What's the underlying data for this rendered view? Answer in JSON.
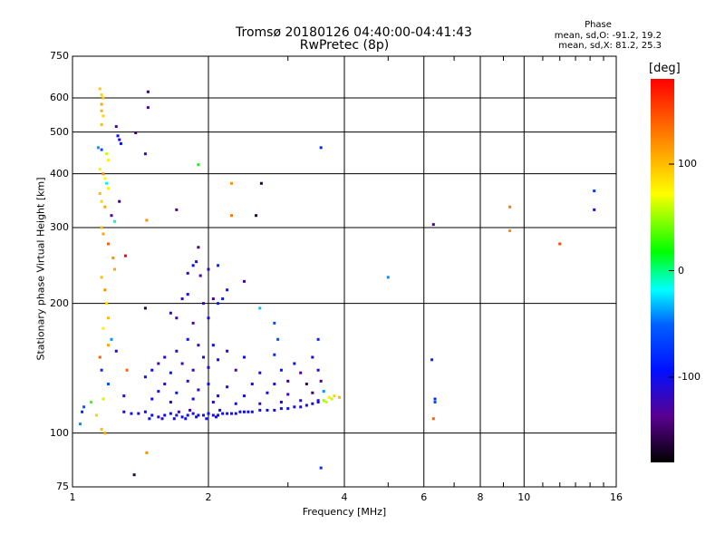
{
  "chart_data": {
    "type": "scatter",
    "title": "Tromsø 20180126 04:40:00-04:41:43",
    "subtitle": "RwPretec (8p)",
    "xlabel": "Frequency [MHz]",
    "ylabel": "Stationary phase Virtual Height [km]",
    "xscale": "log",
    "yscale": "log",
    "xlim": [
      1,
      16
    ],
    "ylim": [
      75,
      750
    ],
    "xticks": [
      1,
      2,
      4,
      6,
      8,
      10,
      16
    ],
    "yticks": [
      75,
      100,
      200,
      300,
      400,
      500,
      600,
      750
    ],
    "grid": true,
    "phase_box": {
      "title": "Phase",
      "line1": "mean, sd,O: -91.2, 19.2",
      "line2": "mean, sd,X:  81.2, 25.3"
    },
    "colorbar": {
      "label": "[deg]",
      "range": [
        -180,
        180
      ],
      "ticks": [
        100,
        0,
        -100
      ],
      "colormap": "rainbow"
    },
    "points": [
      [
        1.15,
        630,
        95
      ],
      [
        1.16,
        610,
        90
      ],
      [
        1.16,
        580,
        110
      ],
      [
        1.16,
        560,
        105
      ],
      [
        1.17,
        600,
        95
      ],
      [
        1.17,
        545,
        90
      ],
      [
        1.16,
        520,
        100
      ],
      [
        1.25,
        515,
        -130
      ],
      [
        1.26,
        490,
        -100
      ],
      [
        1.27,
        480,
        -110
      ],
      [
        1.28,
        470,
        -95
      ],
      [
        1.14,
        460,
        -40
      ],
      [
        1.16,
        455,
        -60
      ],
      [
        1.19,
        445,
        60
      ],
      [
        1.2,
        430,
        80
      ],
      [
        1.15,
        410,
        80
      ],
      [
        1.17,
        400,
        120
      ],
      [
        1.18,
        390,
        70
      ],
      [
        1.19,
        380,
        -20
      ],
      [
        1.2,
        370,
        80
      ],
      [
        1.15,
        360,
        100
      ],
      [
        1.16,
        345,
        90
      ],
      [
        1.18,
        335,
        110
      ],
      [
        1.22,
        320,
        -130
      ],
      [
        1.27,
        345,
        -150
      ],
      [
        1.24,
        310,
        -10
      ],
      [
        1.16,
        300,
        100
      ],
      [
        1.17,
        290,
        110
      ],
      [
        1.2,
        275,
        140
      ],
      [
        1.23,
        255,
        120
      ],
      [
        1.24,
        240,
        110
      ],
      [
        1.31,
        258,
        180
      ],
      [
        1.16,
        230,
        100
      ],
      [
        1.18,
        215,
        120
      ],
      [
        1.19,
        200,
        90
      ],
      [
        1.2,
        185,
        100
      ],
      [
        1.17,
        175,
        80
      ],
      [
        1.22,
        165,
        -40
      ],
      [
        1.2,
        160,
        110
      ],
      [
        1.25,
        155,
        -100
      ],
      [
        1.15,
        150,
        140
      ],
      [
        1.16,
        140,
        -80
      ],
      [
        1.2,
        130,
        -60
      ],
      [
        1.17,
        120,
        60
      ],
      [
        1.13,
        110,
        90
      ],
      [
        1.16,
        102,
        100
      ],
      [
        1.18,
        100,
        110
      ],
      [
        1.06,
        115,
        -60
      ],
      [
        1.05,
        112,
        -80
      ],
      [
        1.04,
        105,
        -40
      ],
      [
        1.1,
        118,
        30
      ],
      [
        1.3,
        122,
        -100
      ],
      [
        1.32,
        140,
        140
      ],
      [
        1.47,
        620,
        -150
      ],
      [
        1.47,
        570,
        -130
      ],
      [
        1.38,
        498,
        -150
      ],
      [
        1.45,
        445,
        -120
      ],
      [
        1.9,
        420,
        20
      ],
      [
        1.46,
        312,
        120
      ],
      [
        1.7,
        330,
        -140
      ],
      [
        2.25,
        380,
        120
      ],
      [
        2.25,
        320,
        130
      ],
      [
        2.62,
        380,
        -160
      ],
      [
        2.55,
        320,
        -160
      ],
      [
        3.55,
        460,
        -80
      ],
      [
        1.45,
        195,
        -160
      ],
      [
        1.37,
        80,
        -160
      ],
      [
        1.46,
        90,
        120
      ],
      [
        1.9,
        270,
        -140
      ],
      [
        1.88,
        250,
        -110
      ],
      [
        1.85,
        245,
        -100
      ],
      [
        1.8,
        235,
        -120
      ],
      [
        1.92,
        232,
        -130
      ],
      [
        2.0,
        240,
        -120
      ],
      [
        2.1,
        245,
        -80
      ],
      [
        2.4,
        225,
        -120
      ],
      [
        2.2,
        215,
        -90
      ],
      [
        1.8,
        210,
        -100
      ],
      [
        1.75,
        205,
        -110
      ],
      [
        1.95,
        200,
        -120
      ],
      [
        2.05,
        205,
        -140
      ],
      [
        1.65,
        190,
        -110
      ],
      [
        1.7,
        185,
        -120
      ],
      [
        1.85,
        180,
        -130
      ],
      [
        2.0,
        185,
        -100
      ],
      [
        2.1,
        200,
        -90
      ],
      [
        2.15,
        205,
        -90
      ],
      [
        2.6,
        195,
        -30
      ],
      [
        2.8,
        180,
        -60
      ],
      [
        2.85,
        165,
        -60
      ],
      [
        3.5,
        165,
        -80
      ],
      [
        1.8,
        165,
        -90
      ],
      [
        1.9,
        160,
        -120
      ],
      [
        2.05,
        160,
        -100
      ],
      [
        2.2,
        155,
        -110
      ],
      [
        1.7,
        155,
        -100
      ],
      [
        1.6,
        150,
        -110
      ],
      [
        1.55,
        145,
        -120
      ],
      [
        1.75,
        145,
        -120
      ],
      [
        1.95,
        150,
        -110
      ],
      [
        2.1,
        148,
        -100
      ],
      [
        2.4,
        150,
        -100
      ],
      [
        2.8,
        152,
        -80
      ],
      [
        3.1,
        145,
        -100
      ],
      [
        3.4,
        150,
        -100
      ],
      [
        1.5,
        140,
        -100
      ],
      [
        1.65,
        138,
        -90
      ],
      [
        1.85,
        140,
        -110
      ],
      [
        2.0,
        142,
        -110
      ],
      [
        2.3,
        140,
        -130
      ],
      [
        2.6,
        138,
        -100
      ],
      [
        2.9,
        140,
        -90
      ],
      [
        3.2,
        138,
        -140
      ],
      [
        3.5,
        140,
        -110
      ],
      [
        1.45,
        135,
        -100
      ],
      [
        1.6,
        130,
        -110
      ],
      [
        1.8,
        132,
        -120
      ],
      [
        2.0,
        130,
        -100
      ],
      [
        2.2,
        128,
        -110
      ],
      [
        2.5,
        130,
        -100
      ],
      [
        2.8,
        130,
        -100
      ],
      [
        3.0,
        132,
        -150
      ],
      [
        3.3,
        130,
        -150
      ],
      [
        3.55,
        132,
        -140
      ],
      [
        1.55,
        125,
        -100
      ],
      [
        1.7,
        124,
        -90
      ],
      [
        1.9,
        126,
        -110
      ],
      [
        2.1,
        122,
        -100
      ],
      [
        2.4,
        122,
        -100
      ],
      [
        2.7,
        124,
        -100
      ],
      [
        3.0,
        123,
        -120
      ],
      [
        3.4,
        124,
        -150
      ],
      [
        3.6,
        125,
        -40
      ],
      [
        1.5,
        120,
        -100
      ],
      [
        1.65,
        118,
        -110
      ],
      [
        1.85,
        120,
        -100
      ],
      [
        2.05,
        118,
        -110
      ],
      [
        2.3,
        117,
        -100
      ],
      [
        2.6,
        117,
        -110
      ],
      [
        2.9,
        118,
        -100
      ],
      [
        3.2,
        119,
        -120
      ],
      [
        3.5,
        119,
        -100
      ],
      [
        3.7,
        121,
        80
      ],
      [
        3.75,
        120,
        60
      ],
      [
        3.8,
        122,
        90
      ],
      [
        3.9,
        121,
        100
      ],
      [
        3.65,
        118,
        60
      ],
      [
        3.6,
        119,
        50
      ],
      [
        1.3,
        112,
        -100
      ],
      [
        1.35,
        111,
        -100
      ],
      [
        1.4,
        111,
        -110
      ],
      [
        1.45,
        112,
        -100
      ],
      [
        1.5,
        110,
        -100
      ],
      [
        1.55,
        109,
        -110
      ],
      [
        1.6,
        110,
        -100
      ],
      [
        1.65,
        111,
        -100
      ],
      [
        1.7,
        110,
        -110
      ],
      [
        1.75,
        109,
        -100
      ],
      [
        1.8,
        110,
        -100
      ],
      [
        1.85,
        111,
        -110
      ],
      [
        1.9,
        110,
        -100
      ],
      [
        1.95,
        110,
        -100
      ],
      [
        2.0,
        111,
        -100
      ],
      [
        2.05,
        110,
        -110
      ],
      [
        2.1,
        110,
        -100
      ],
      [
        2.15,
        111,
        -100
      ],
      [
        2.2,
        111,
        -100
      ],
      [
        2.25,
        111,
        -110
      ],
      [
        2.3,
        111,
        -100
      ],
      [
        2.35,
        112,
        -100
      ],
      [
        2.4,
        112,
        -100
      ],
      [
        2.45,
        112,
        -110
      ],
      [
        2.5,
        112,
        -100
      ],
      [
        2.6,
        113,
        -100
      ],
      [
        2.7,
        113,
        -100
      ],
      [
        2.8,
        113,
        -110
      ],
      [
        2.9,
        114,
        -100
      ],
      [
        3.0,
        114,
        -100
      ],
      [
        3.1,
        115,
        -100
      ],
      [
        3.2,
        115,
        -110
      ],
      [
        3.3,
        116,
        -100
      ],
      [
        3.4,
        117,
        -100
      ],
      [
        3.5,
        118,
        -110
      ],
      [
        1.48,
        108,
        -100
      ],
      [
        1.58,
        108,
        -110
      ],
      [
        1.68,
        108,
        -100
      ],
      [
        1.78,
        108,
        -100
      ],
      [
        1.88,
        109,
        -110
      ],
      [
        1.98,
        108,
        -100
      ],
      [
        2.08,
        109,
        -100
      ],
      [
        1.72,
        112,
        -120
      ],
      [
        1.82,
        113,
        -120
      ],
      [
        2.12,
        113,
        -110
      ],
      [
        6.3,
        305,
        -140
      ],
      [
        6.25,
        148,
        -80
      ],
      [
        6.35,
        120,
        -80
      ],
      [
        6.35,
        118,
        -60
      ],
      [
        6.3,
        108,
        140
      ],
      [
        5.0,
        230,
        -40
      ],
      [
        9.3,
        335,
        130
      ],
      [
        9.3,
        295,
        120
      ],
      [
        12.0,
        275,
        150
      ],
      [
        14.3,
        365,
        -70
      ],
      [
        14.3,
        330,
        -110
      ],
      [
        3.55,
        83,
        -80
      ]
    ]
  }
}
